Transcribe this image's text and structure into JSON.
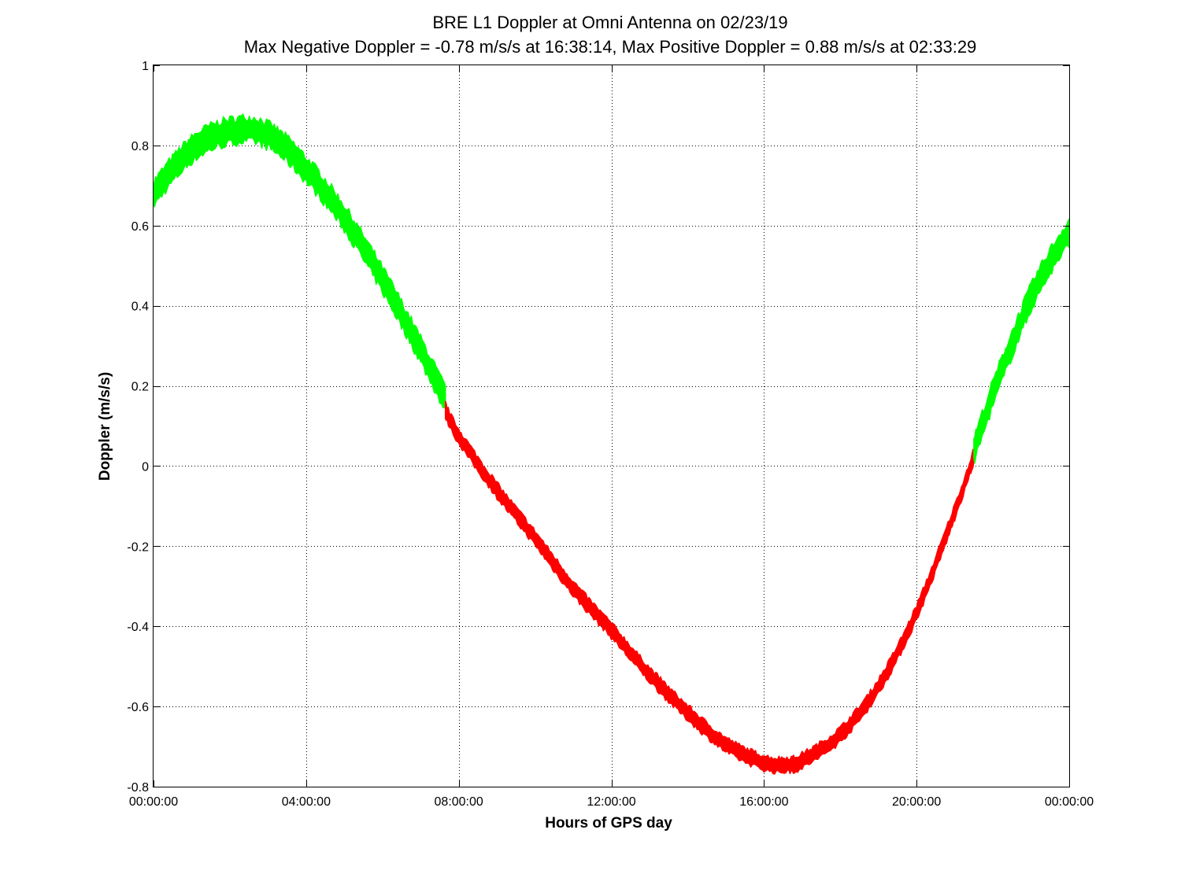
{
  "chart_data": {
    "type": "line",
    "title": "BRE  L1 Doppler at Omni Antenna on 02/23/19",
    "subtitle": "Max Negative Doppler = -0.78 m/s/s  at 16:38:14,   Max Positive Doppler = 0.88 m/s/s  at 02:33:29",
    "xlabel": "Hours of GPS day",
    "ylabel": "Doppler (m/s/s)",
    "xlim": [
      0,
      24
    ],
    "ylim": [
      -0.8,
      1
    ],
    "grid": true,
    "x_ticks": [
      0,
      4,
      8,
      12,
      16,
      20,
      24
    ],
    "x_tick_labels": [
      "00:00:00",
      "04:00:00",
      "08:00:00",
      "12:00:00",
      "16:00:00",
      "20:00:00",
      "00:00:00"
    ],
    "y_ticks": [
      -0.8,
      -0.6,
      -0.4,
      -0.2,
      0,
      0.2,
      0.4,
      0.6,
      0.8,
      1
    ],
    "y_tick_labels": [
      "-0.8",
      "-0.6",
      "-0.4",
      "-0.2",
      "0",
      "0.2",
      "0.4",
      "0.6",
      "0.8",
      "1"
    ],
    "series": [
      {
        "color": "#00ff00",
        "band_width": 0.06,
        "points": [
          [
            0,
            0.68
          ],
          [
            0.5,
            0.74
          ],
          [
            1,
            0.79
          ],
          [
            1.5,
            0.82
          ],
          [
            2,
            0.835
          ],
          [
            2.55,
            0.84
          ],
          [
            3,
            0.825
          ],
          [
            3.5,
            0.79
          ],
          [
            4,
            0.74
          ],
          [
            4.5,
            0.685
          ],
          [
            5,
            0.62
          ],
          [
            5.5,
            0.545
          ],
          [
            6,
            0.465
          ],
          [
            6.5,
            0.38
          ],
          [
            7,
            0.29
          ],
          [
            7.4,
            0.215
          ],
          [
            7.65,
            0.165
          ]
        ]
      },
      {
        "color": "#ff0000",
        "band_width": 0.035,
        "points": [
          [
            7.65,
            0.14
          ],
          [
            8,
            0.075
          ],
          [
            9,
            -0.06
          ],
          [
            10,
            -0.18
          ],
          [
            11,
            -0.305
          ],
          [
            12,
            -0.41
          ],
          [
            13,
            -0.52
          ],
          [
            14,
            -0.615
          ],
          [
            15,
            -0.695
          ],
          [
            16,
            -0.74
          ],
          [
            16.6,
            -0.745
          ],
          [
            17,
            -0.735
          ],
          [
            18,
            -0.67
          ],
          [
            19,
            -0.55
          ],
          [
            20,
            -0.365
          ],
          [
            21,
            -0.115
          ],
          [
            21.5,
            0.025
          ]
        ]
      },
      {
        "color": "#00ff00",
        "band_width": 0.06,
        "points": [
          [
            21.5,
            0.04
          ],
          [
            22,
            0.18
          ],
          [
            22.5,
            0.305
          ],
          [
            23,
            0.42
          ],
          [
            23.5,
            0.51
          ],
          [
            24,
            0.585
          ]
        ]
      }
    ]
  }
}
